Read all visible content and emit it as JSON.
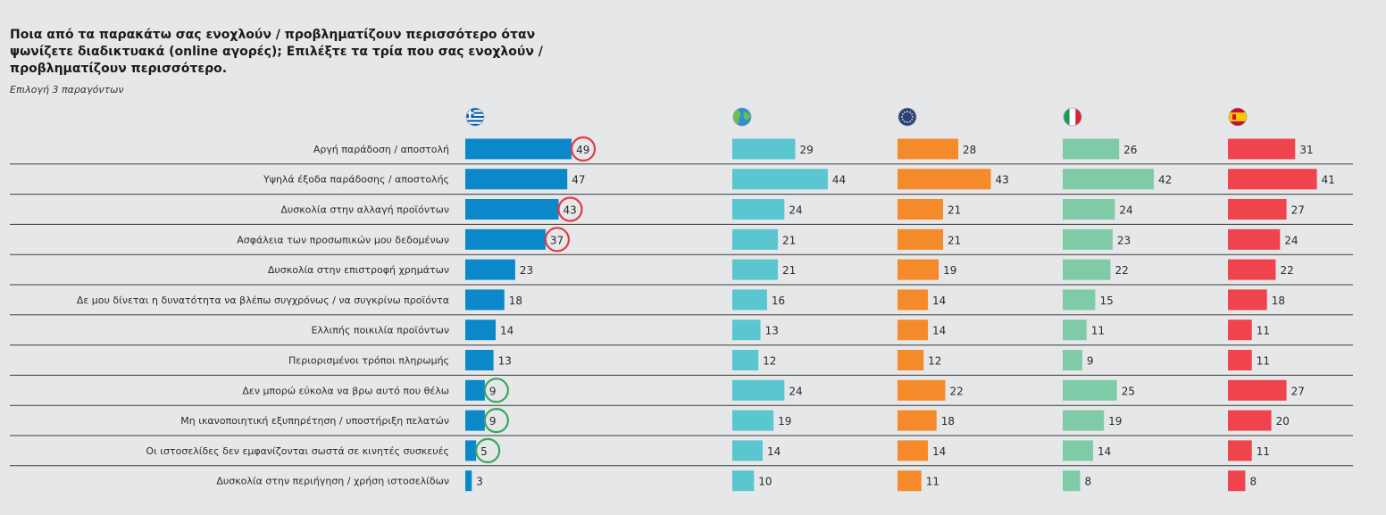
{
  "chart_data": {
    "type": "bar",
    "orientation": "horizontal",
    "title": "Ποια από τα παρακάτω σας ενοχλούν / προβληματίζουν περισσότερο όταν ψωνίζετε διαδικτυακά (online αγορές); Επιλέξτε τα τρία που σας ενοχλούν / προβληματίζουν περισσότερο.",
    "subtitle": "Επιλογή 3 παραγόντων",
    "categories": [
      "Αργή παράδοση / αποστολή",
      "Υψηλά έξοδα παράδοσης / αποστολής",
      "Δυσκολία στην αλλαγή προϊόντων",
      "Ασφάλεια των προσωπικών μου δεδομένων",
      "Δυσκολία στην επιστροφή χρημάτων",
      "Δε μου δίνεται η δυνατότητα να βλέπω συγχρόνως / να συγκρίνω προϊόντα",
      "Ελλιπής ποικιλία προϊόντων",
      "Περιορισμένοι τρόποι πληρωμής",
      "Δεν μπορώ εύκολα να βρω αυτό που θέλω",
      "Μη ικανοποιητική εξυπηρέτηση / υποστήριξη πελατών",
      "Οι ιστοσελίδες δεν εμφανίζονται σωστά σε κινητές συσκευές",
      "Δυσκολία στην περιήγηση / χρήση ιστοσελίδων"
    ],
    "series": [
      {
        "icon": "greece-flag-icon",
        "color": "#0a88c9",
        "values": [
          49,
          47,
          43,
          37,
          23,
          18,
          14,
          13,
          9,
          9,
          5,
          3
        ]
      },
      {
        "icon": "globe-icon",
        "color": "#5ac6d0",
        "values": [
          29,
          44,
          24,
          21,
          21,
          16,
          13,
          12,
          24,
          19,
          14,
          10
        ]
      },
      {
        "icon": "eu-flag-icon",
        "color": "#f58a2a",
        "values": [
          28,
          43,
          21,
          21,
          19,
          14,
          14,
          12,
          22,
          18,
          14,
          11
        ]
      },
      {
        "icon": "italy-flag-icon",
        "color": "#7fcba8",
        "values": [
          26,
          42,
          24,
          23,
          22,
          15,
          11,
          9,
          25,
          19,
          14,
          8
        ]
      },
      {
        "icon": "spain-flag-icon",
        "color": "#ef444d",
        "values": [
          31,
          41,
          27,
          24,
          22,
          18,
          11,
          11,
          27,
          20,
          11,
          8
        ]
      }
    ],
    "highlights": [
      {
        "series": 0,
        "category": 0,
        "color": "#e03c45"
      },
      {
        "series": 0,
        "category": 2,
        "color": "#e03c45"
      },
      {
        "series": 0,
        "category": 3,
        "color": "#e03c45"
      },
      {
        "series": 0,
        "category": 8,
        "color": "#3aa85e"
      },
      {
        "series": 0,
        "category": 9,
        "color": "#3aa85e"
      },
      {
        "series": 0,
        "category": 10,
        "color": "#3aa85e"
      }
    ],
    "grid": false,
    "legend": "top, flag icons above each column"
  }
}
